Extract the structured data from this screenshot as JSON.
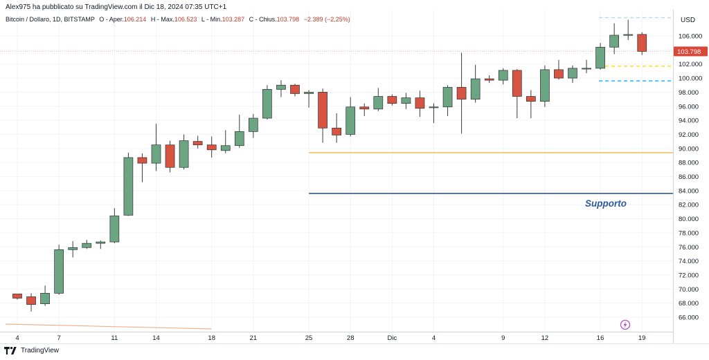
{
  "header": {
    "author_line": "Alex975 ha pubblicato su TradingView.com il Dic 18, 2024 07:35 UTC+1"
  },
  "ohlc_line": {
    "symbol": "Bitcoin / Dollaro, 1D, BITSTAMP",
    "open_label": "O - Aper.",
    "open_value": "106.214",
    "high_label": "H - Max.",
    "high_value": "106.523",
    "low_label": "L - Min.",
    "low_value": "103.287",
    "close_label": "C - Chius.",
    "close_value": "103.798",
    "change": "−2.389 (−2,25%)"
  },
  "footer": {
    "brand": "TradingView"
  },
  "colors": {
    "up": "#6ba583",
    "down": "#d75442",
    "support_line": "#2c5aa0",
    "orange_line": "#e8b84a",
    "yellow_dash": "#f5e642",
    "blue_dash": "#4fc3f7",
    "price_badge": "#d9473a"
  },
  "chart_data": {
    "type": "candlestick",
    "currency": "USD",
    "ylim": [
      64000,
      108000
    ],
    "y_ticks": [
      66000,
      68000,
      70000,
      72000,
      74000,
      76000,
      78000,
      80000,
      82000,
      84000,
      86000,
      88000,
      90000,
      92000,
      94000,
      96000,
      98000,
      100000,
      102000,
      104000,
      106000
    ],
    "y_tick_labels": [
      "66.000",
      "68.000",
      "70.000",
      "72.000",
      "74.000",
      "76.000",
      "78.000",
      "80.000",
      "82.000",
      "84.000",
      "86.000",
      "88.000",
      "90.000",
      "92.000",
      "94.000",
      "96.000",
      "98.000",
      "100.000",
      "102.000",
      "104.000",
      "106.000"
    ],
    "x_tick_labels": [
      {
        "label": "4",
        "index": 0
      },
      {
        "label": "7",
        "index": 3
      },
      {
        "label": "11",
        "index": 7
      },
      {
        "label": "14",
        "index": 10
      },
      {
        "label": "18",
        "index": 14
      },
      {
        "label": "21",
        "index": 17
      },
      {
        "label": "25",
        "index": 21
      },
      {
        "label": "28",
        "index": 24
      },
      {
        "label": "Dic",
        "index": 27
      },
      {
        "label": "4",
        "index": 30
      },
      {
        "label": "9",
        "index": 35
      },
      {
        "label": "12",
        "index": 38
      },
      {
        "label": "16",
        "index": 42
      },
      {
        "label": "19",
        "index": 45
      }
    ],
    "candles": [
      {
        "o": 69300,
        "h": 69300,
        "l": 68500,
        "c": 68700
      },
      {
        "o": 68900,
        "h": 69400,
        "l": 66800,
        "c": 67800
      },
      {
        "o": 67900,
        "h": 70500,
        "l": 67600,
        "c": 69400
      },
      {
        "o": 69400,
        "h": 76300,
        "l": 69200,
        "c": 75600
      },
      {
        "o": 75600,
        "h": 76800,
        "l": 74500,
        "c": 75900
      },
      {
        "o": 75900,
        "h": 77000,
        "l": 75700,
        "c": 76500
      },
      {
        "o": 76500,
        "h": 76900,
        "l": 75700,
        "c": 76700
      },
      {
        "o": 76700,
        "h": 81500,
        "l": 76500,
        "c": 80400
      },
      {
        "o": 80500,
        "h": 89400,
        "l": 80400,
        "c": 88700
      },
      {
        "o": 88700,
        "h": 89300,
        "l": 85200,
        "c": 87900
      },
      {
        "o": 87900,
        "h": 93500,
        "l": 86800,
        "c": 90500
      },
      {
        "o": 90500,
        "h": 91100,
        "l": 86600,
        "c": 87300
      },
      {
        "o": 87300,
        "h": 92000,
        "l": 87000,
        "c": 91100
      },
      {
        "o": 91000,
        "h": 91800,
        "l": 90000,
        "c": 90500
      },
      {
        "o": 90500,
        "h": 91700,
        "l": 88700,
        "c": 89800
      },
      {
        "o": 89700,
        "h": 92600,
        "l": 89300,
        "c": 90400
      },
      {
        "o": 90400,
        "h": 94800,
        "l": 90100,
        "c": 92400
      },
      {
        "o": 92400,
        "h": 94900,
        "l": 91500,
        "c": 94300
      },
      {
        "o": 94300,
        "h": 99000,
        "l": 94100,
        "c": 98400
      },
      {
        "o": 98400,
        "h": 99700,
        "l": 97300,
        "c": 99000
      },
      {
        "o": 99000,
        "h": 99200,
        "l": 97400,
        "c": 97800
      },
      {
        "o": 97800,
        "h": 98300,
        "l": 95800,
        "c": 98000
      },
      {
        "o": 98000,
        "h": 98500,
        "l": 90800,
        "c": 92900
      },
      {
        "o": 92900,
        "h": 95000,
        "l": 90800,
        "c": 91900
      },
      {
        "o": 92000,
        "h": 97300,
        "l": 91700,
        "c": 95900
      },
      {
        "o": 95900,
        "h": 96400,
        "l": 94600,
        "c": 95600
      },
      {
        "o": 95600,
        "h": 98600,
        "l": 95300,
        "c": 97400
      },
      {
        "o": 97400,
        "h": 97700,
        "l": 96100,
        "c": 96400
      },
      {
        "o": 96400,
        "h": 97900,
        "l": 95600,
        "c": 97200
      },
      {
        "o": 97200,
        "h": 98200,
        "l": 94500,
        "c": 95700
      },
      {
        "o": 95800,
        "h": 96400,
        "l": 93600,
        "c": 95900
      },
      {
        "o": 95900,
        "h": 99000,
        "l": 94600,
        "c": 98700
      },
      {
        "o": 98700,
        "h": 103600,
        "l": 92100,
        "c": 97000
      },
      {
        "o": 97000,
        "h": 101900,
        "l": 96500,
        "c": 99900
      },
      {
        "o": 99900,
        "h": 100400,
        "l": 99300,
        "c": 99700
      },
      {
        "o": 99700,
        "h": 101400,
        "l": 99100,
        "c": 101100
      },
      {
        "o": 101100,
        "h": 101300,
        "l": 94300,
        "c": 97400
      },
      {
        "o": 97400,
        "h": 98300,
        "l": 94300,
        "c": 96700
      },
      {
        "o": 96700,
        "h": 101800,
        "l": 95900,
        "c": 101200
      },
      {
        "o": 101200,
        "h": 102600,
        "l": 99800,
        "c": 100000
      },
      {
        "o": 100000,
        "h": 101800,
        "l": 99300,
        "c": 101400
      },
      {
        "o": 101400,
        "h": 102600,
        "l": 100700,
        "c": 101400
      },
      {
        "o": 101400,
        "h": 105000,
        "l": 101200,
        "c": 104400
      },
      {
        "o": 104400,
        "h": 107800,
        "l": 103400,
        "c": 106100
      },
      {
        "o": 106100,
        "h": 108300,
        "l": 105400,
        "c": 106200
      },
      {
        "o": 106214,
        "h": 106523,
        "l": 103287,
        "c": 103798
      }
    ],
    "current_price_label": "103.798",
    "current_price": 103798,
    "annotations": [
      {
        "text": "Supporto",
        "color": "#2c5aa0"
      }
    ],
    "lines": [
      {
        "kind": "support",
        "y": 83600,
        "from_index": 22,
        "to": "end"
      },
      {
        "kind": "orange",
        "y": 89400,
        "from_index": 22,
        "to": "end"
      },
      {
        "kind": "yellow_dash",
        "y": 101700,
        "from_index": 42,
        "to": "end"
      },
      {
        "kind": "blue_dash",
        "y": 99600,
        "from_index": 42,
        "to": "end"
      },
      {
        "kind": "cyan_dash_top",
        "y": 108600,
        "from_index": 42,
        "to": "end"
      }
    ],
    "grid": true
  }
}
